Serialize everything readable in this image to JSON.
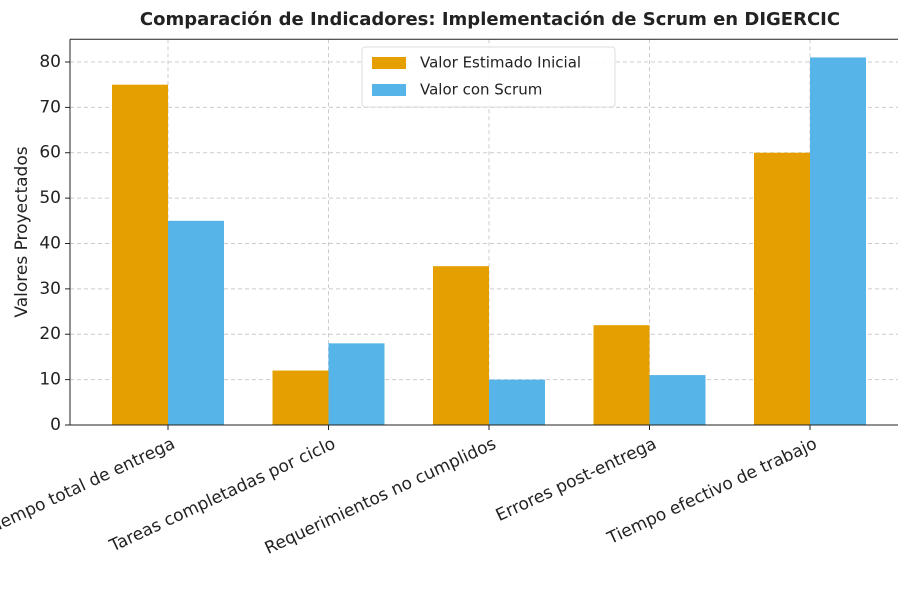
{
  "chart_data": {
    "type": "bar",
    "title": "Comparación de Indicadores: Implementación de Scrum en DIGERCIC",
    "y_label": "Valores Proyectados",
    "categories": [
      "Tiempo total de entrega",
      "Tareas completadas por ciclo",
      "Requerimientos no cumplidos",
      "Errores post-entrega",
      "Tiempo efectivo de trabajo"
    ],
    "series": [
      {
        "name": "Valor Estimado Inicial",
        "color": "#e69f00",
        "values": [
          75,
          12,
          35,
          22,
          60
        ]
      },
      {
        "name": "Valor con Scrum",
        "color": "#56b4e9",
        "values": [
          45,
          18,
          10,
          11,
          81
        ]
      }
    ],
    "ylim": [
      0,
      85
    ],
    "yticks": [
      0,
      10,
      20,
      30,
      40,
      50,
      60,
      70,
      80
    ],
    "grid": true,
    "legend": "upper center"
  }
}
